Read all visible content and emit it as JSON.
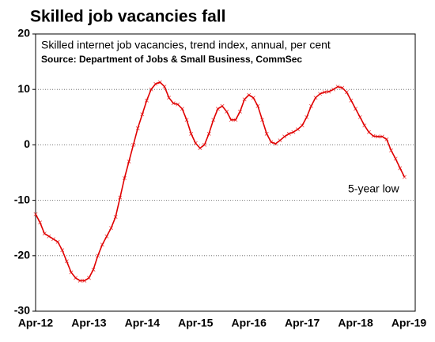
{
  "chart_data": {
    "type": "line",
    "title": "Skilled job vacancies fall",
    "subtitle": "Skilled internet job vacancies, trend index, annual, per cent",
    "source": "Source: Department of Jobs & Small Business, CommSec",
    "annotation": "5-year low",
    "categories": [
      "Apr-12",
      null,
      null,
      null,
      null,
      null,
      null,
      null,
      null,
      null,
      null,
      null,
      "Apr-13",
      null,
      null,
      null,
      null,
      null,
      null,
      null,
      null,
      null,
      null,
      null,
      "Apr-14",
      null,
      null,
      null,
      null,
      null,
      null,
      null,
      null,
      null,
      null,
      null,
      "Apr-15",
      null,
      null,
      null,
      null,
      null,
      null,
      null,
      null,
      null,
      null,
      null,
      "Apr-16",
      null,
      null,
      null,
      null,
      null,
      null,
      null,
      null,
      null,
      null,
      null,
      "Apr-17",
      null,
      null,
      null,
      null,
      null,
      null,
      null,
      null,
      null,
      null,
      null,
      "Apr-18",
      null,
      null,
      null,
      null,
      null,
      null,
      null,
      null,
      null,
      null,
      null,
      "Apr-19"
    ],
    "series": [
      {
        "name": "Skilled internet job vacancies",
        "color": "#e00000",
        "values": [
          -12.5,
          -14,
          -16,
          -16.5,
          -17,
          -17.5,
          -19,
          -21,
          -23,
          -24,
          -24.5,
          -24.5,
          -24,
          -22.5,
          -20,
          -18,
          -16.5,
          -15,
          -13,
          -9.5,
          -6,
          -3,
          0,
          3,
          5.5,
          8,
          10,
          11,
          11.3,
          10.5,
          8.5,
          7.5,
          7.3,
          6.5,
          4.5,
          2,
          0.3,
          -0.6,
          0,
          2,
          4.5,
          6.5,
          7,
          6,
          4.5,
          4.5,
          6,
          8.2,
          9,
          8.5,
          7,
          4.5,
          2,
          0.5,
          0.2,
          0.8,
          1.5,
          2,
          2.3,
          2.8,
          3.5,
          5,
          7,
          8.5,
          9.2,
          9.5,
          9.6,
          10,
          10.5,
          10.3,
          9.5,
          8,
          6.5,
          5,
          3.5,
          2.3,
          1.6,
          1.5,
          1.5,
          1,
          -1,
          -2.5,
          -4.2,
          -5.8,
          null
        ]
      }
    ],
    "ylim": [
      -30,
      20
    ],
    "yticks": [
      -30,
      -20,
      -10,
      0,
      10,
      20
    ],
    "grid": true
  }
}
